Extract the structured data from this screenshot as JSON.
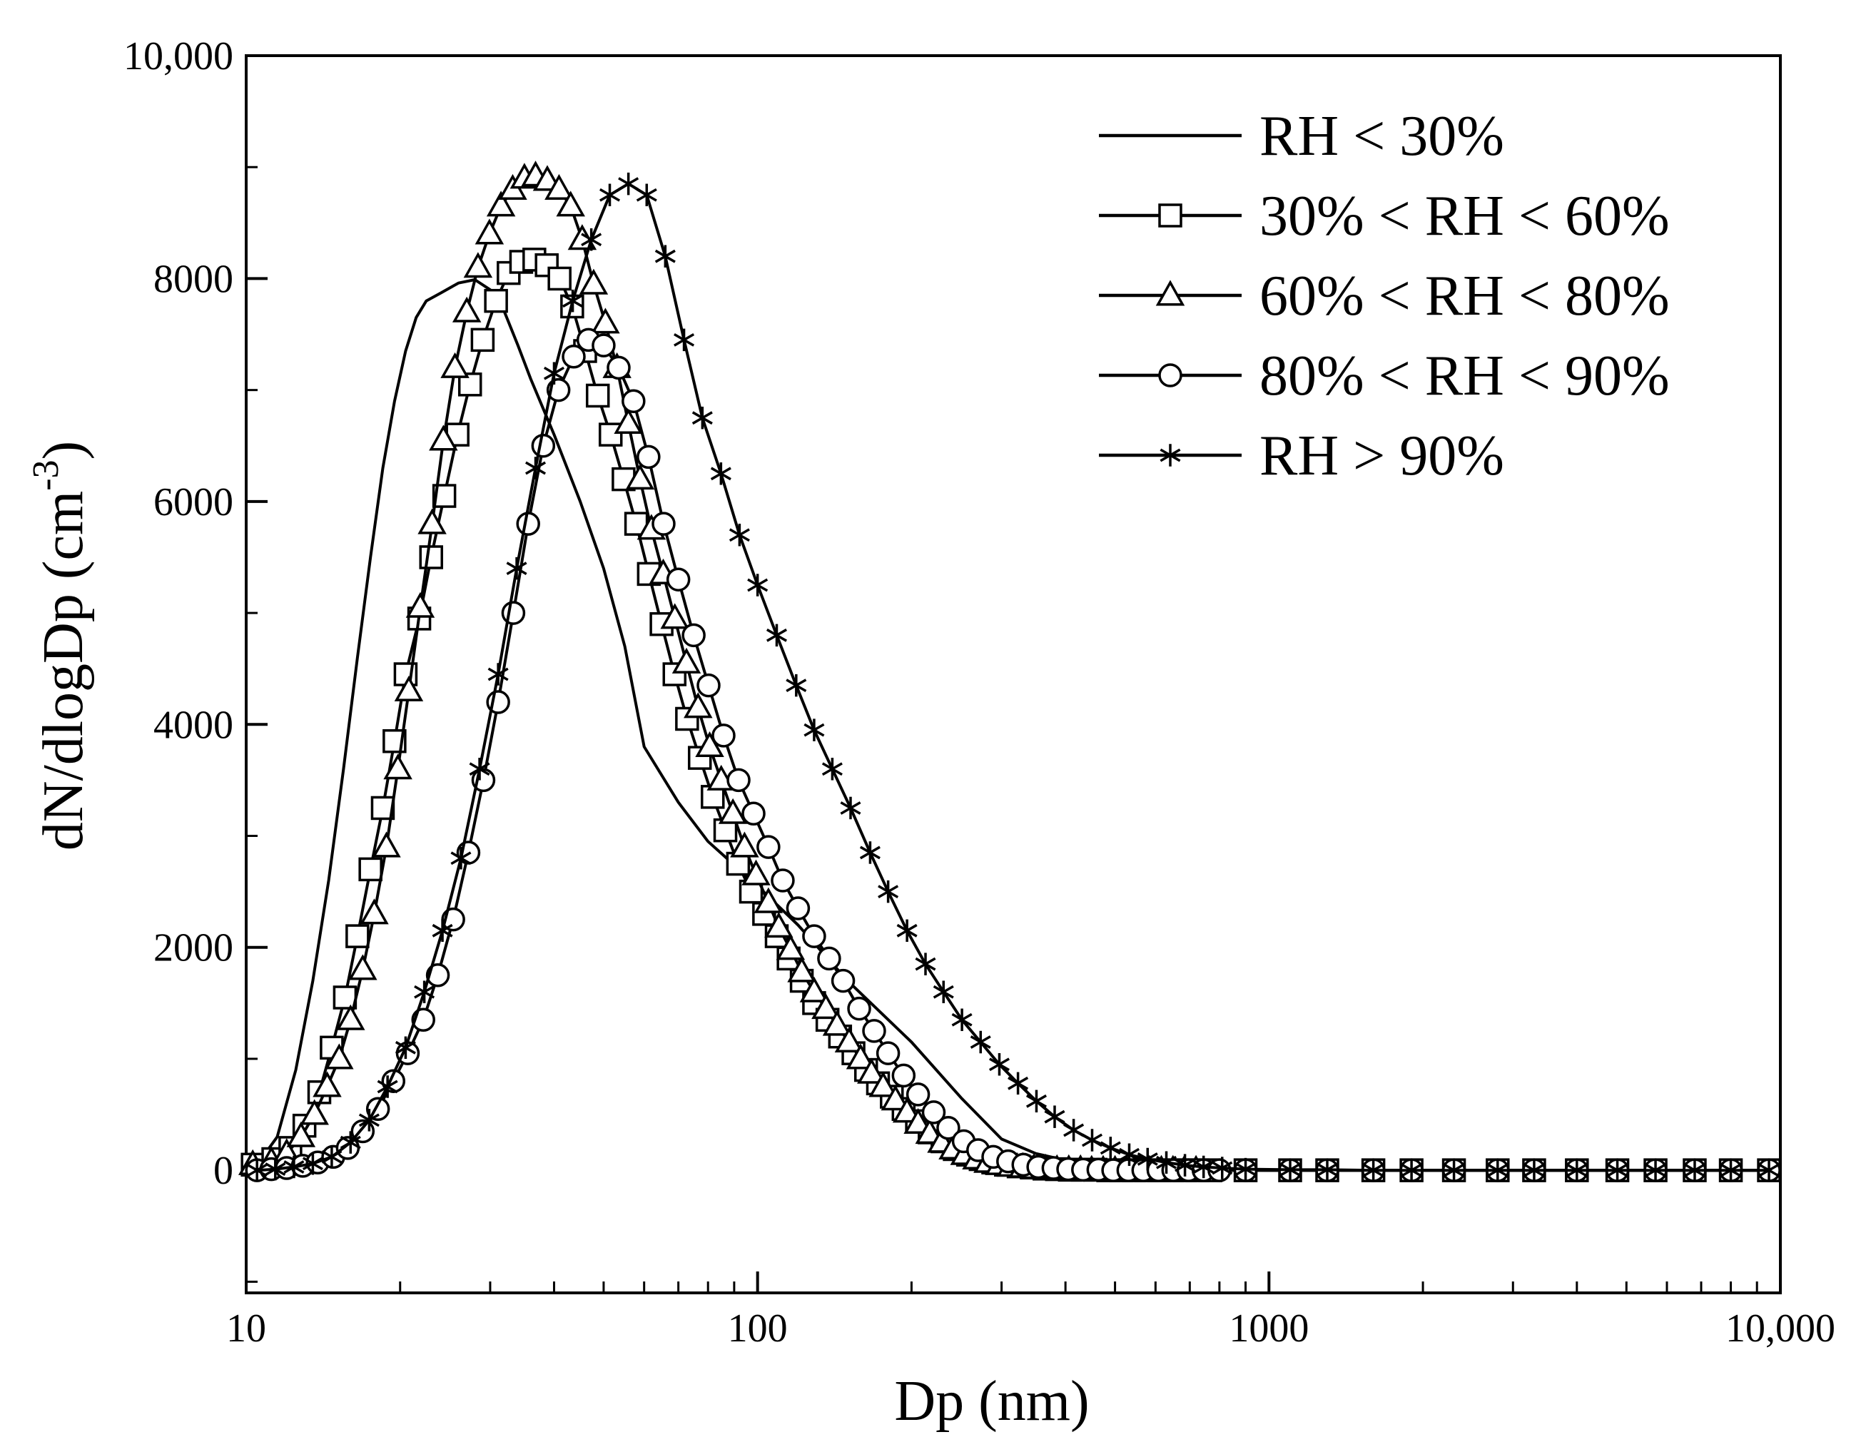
{
  "chart_data": {
    "type": "line",
    "title": "",
    "xlabel": "Dp (nm)",
    "ylabel_main": "dN/dlogDp (cm",
    "ylabel_sup": "-3",
    "ylabel_close": ")",
    "x_scale": "log",
    "xlim": [
      10,
      10000
    ],
    "ylim": [
      -1100,
      10000
    ],
    "x_ticks": [
      {
        "value": 10,
        "label": "10"
      },
      {
        "value": 100,
        "label": "100"
      },
      {
        "value": 1000,
        "label": "1000"
      },
      {
        "value": 10000,
        "label": "10,000"
      }
    ],
    "y_ticks": [
      {
        "value": 0,
        "label": "0"
      },
      {
        "value": 2000,
        "label": "2000"
      },
      {
        "value": 4000,
        "label": "4000"
      },
      {
        "value": 6000,
        "label": "6000"
      },
      {
        "value": 8000,
        "label": "8000"
      },
      {
        "value": 10000,
        "label": "10,000"
      }
    ],
    "grid": false,
    "legend_position": "top-right",
    "series": [
      {
        "name": "RH < 30%",
        "marker": "none",
        "x": [
          10.5,
          11.5,
          12.5,
          13.5,
          14.5,
          15.5,
          16.5,
          17.5,
          18.5,
          19.5,
          20.5,
          21.5,
          22.5,
          24,
          26,
          28,
          30,
          32,
          34,
          36,
          40,
          45,
          50,
          55,
          60,
          70,
          80,
          100,
          120,
          150,
          200,
          250,
          300,
          350,
          400,
          500,
          600,
          800,
          1000,
          2000,
          5000,
          10000
        ],
        "y": [
          50,
          300,
          900,
          1700,
          2600,
          3600,
          4600,
          5500,
          6300,
          6900,
          7350,
          7650,
          7800,
          7870,
          7960,
          7990,
          7900,
          7700,
          7400,
          7100,
          6600,
          6000,
          5400,
          4700,
          3800,
          3300,
          2950,
          2550,
          2200,
          1700,
          1150,
          650,
          280,
          150,
          90,
          40,
          20,
          5,
          0,
          0,
          0,
          0
        ]
      },
      {
        "name": "30% < RH < 60%",
        "marker": "square",
        "x": [
          10.3,
          11.3,
          12.2,
          13.0,
          13.9,
          14.7,
          15.6,
          16.5,
          17.5,
          18.5,
          19.5,
          20.5,
          21.8,
          23,
          24.4,
          25.9,
          27.4,
          29,
          30.8,
          32.6,
          34.5,
          36.6,
          38.7,
          41,
          43.4,
          46,
          48.7,
          51.6,
          54.7,
          57.9,
          61.3,
          64.9,
          68.8,
          72.8,
          77.1,
          81.7,
          86.5,
          91.6,
          97.1,
          103,
          109,
          115,
          122,
          129,
          137,
          145,
          154,
          163,
          172,
          183,
          193,
          205,
          217,
          230,
          243,
          258,
          273,
          289,
          306,
          324,
          344,
          364,
          385,
          408,
          432,
          458,
          485,
          514,
          544,
          576,
          610,
          646,
          685,
          725,
          768,
          900,
          1100,
          1300,
          1600,
          1900,
          2300,
          2800,
          3300,
          4000,
          4800,
          5700,
          6800,
          8000,
          9500
        ],
        "y": [
          50,
          100,
          200,
          400,
          700,
          1100,
          1550,
          2100,
          2700,
          3250,
          3850,
          4450,
          4950,
          5500,
          6050,
          6600,
          7050,
          7450,
          7800,
          8050,
          8150,
          8170,
          8120,
          8000,
          7750,
          7350,
          6950,
          6600,
          6200,
          5800,
          5350,
          4900,
          4450,
          4050,
          3700,
          3350,
          3050,
          2750,
          2500,
          2300,
          2100,
          1900,
          1700,
          1500,
          1350,
          1200,
          1050,
          900,
          780,
          660,
          550,
          440,
          340,
          260,
          190,
          140,
          100,
          70,
          50,
          35,
          25,
          15,
          10,
          5,
          5,
          5,
          0,
          0,
          0,
          0,
          0,
          0,
          0,
          0,
          0,
          0,
          0,
          0,
          0,
          0,
          0,
          0,
          0,
          0,
          0,
          0,
          0,
          0,
          0
        ]
      },
      {
        "name": "60% < RH < 80%",
        "marker": "triangle",
        "x": [
          10.3,
          11.2,
          12.0,
          12.8,
          13.6,
          14.4,
          15.2,
          16.0,
          16.9,
          17.8,
          18.8,
          19.8,
          20.8,
          21.9,
          23.1,
          24.3,
          25.6,
          27,
          28.4,
          29.9,
          31.5,
          33.2,
          35,
          36.8,
          38.8,
          40.9,
          43.1,
          45.4,
          47.8,
          50.4,
          53.1,
          55.9,
          58.9,
          62,
          65.4,
          68.9,
          72.6,
          76.5,
          80.6,
          84.9,
          89.5,
          94.3,
          99.3,
          105,
          110,
          116,
          122,
          129,
          136,
          143,
          151,
          159,
          167,
          176,
          186,
          196,
          206,
          217,
          229,
          241,
          254,
          268,
          282,
          297,
          313,
          330,
          347,
          366,
          385,
          406,
          428,
          450,
          474,
          500,
          527,
          555,
          584,
          616,
          649,
          683,
          720
        ],
        "y": [
          50,
          80,
          150,
          300,
          500,
          750,
          1000,
          1350,
          1800,
          2300,
          2900,
          3600,
          4300,
          5050,
          5800,
          6550,
          7200,
          7700,
          8100,
          8400,
          8650,
          8800,
          8900,
          8920,
          8880,
          8800,
          8650,
          8350,
          7950,
          7600,
          7200,
          6700,
          6200,
          5750,
          5350,
          4950,
          4550,
          4150,
          3800,
          3500,
          3200,
          2900,
          2650,
          2400,
          2180,
          1980,
          1780,
          1600,
          1450,
          1300,
          1150,
          1000,
          870,
          750,
          630,
          520,
          420,
          330,
          250,
          190,
          140,
          100,
          70,
          50,
          35,
          25,
          15,
          10,
          5,
          5,
          5,
          0,
          0,
          0,
          0,
          0,
          0,
          0,
          0,
          0,
          0
        ]
      },
      {
        "name": "80% < RH < 90%",
        "marker": "circle",
        "x": [
          10.5,
          11.2,
          12.0,
          12.9,
          13.8,
          14.8,
          15.8,
          16.9,
          18.1,
          19.4,
          20.7,
          22.2,
          23.7,
          25.4,
          27.2,
          29.1,
          31.1,
          33.3,
          35.6,
          38.1,
          40.8,
          43.7,
          46.7,
          50,
          53.5,
          57.2,
          61.2,
          65.5,
          70,
          75,
          80.2,
          85.8,
          91.8,
          98.2,
          105,
          112,
          120,
          129,
          138,
          147,
          158,
          169,
          180,
          193,
          206,
          221,
          236,
          253,
          270,
          289,
          309,
          331,
          354,
          379,
          405,
          433,
          464,
          496,
          531,
          568,
          608,
          650,
          696,
          745,
          800,
          900,
          1100,
          1300,
          1600,
          1900,
          2300,
          2800,
          3300,
          4000,
          4800,
          5700,
          6800,
          8000,
          9500
        ],
        "y": [
          0,
          10,
          20,
          40,
          70,
          120,
          200,
          350,
          550,
          800,
          1050,
          1350,
          1750,
          2250,
          2850,
          3500,
          4200,
          5000,
          5800,
          6500,
          7000,
          7300,
          7450,
          7400,
          7200,
          6900,
          6400,
          5800,
          5300,
          4800,
          4350,
          3900,
          3500,
          3200,
          2900,
          2600,
          2350,
          2100,
          1900,
          1700,
          1450,
          1250,
          1050,
          850,
          680,
          520,
          380,
          260,
          180,
          120,
          80,
          50,
          30,
          20,
          10,
          5,
          5,
          0,
          0,
          0,
          0,
          0,
          0,
          0,
          0,
          0,
          0,
          0,
          0,
          0,
          0,
          0,
          0,
          0,
          0,
          0,
          0,
          0,
          0
        ]
      },
      {
        "name": "RH > 90%",
        "marker": "star",
        "x": [
          10.5,
          11.4,
          12.4,
          13.5,
          14.7,
          16.0,
          17.4,
          18.9,
          20.5,
          22.3,
          24.2,
          26.3,
          28.6,
          31.1,
          33.8,
          36.8,
          40,
          43.5,
          47.3,
          51.4,
          55.9,
          60.7,
          66,
          71.8,
          78,
          84.8,
          92.2,
          100,
          109,
          119,
          129,
          140,
          152,
          166,
          180,
          196,
          213,
          231,
          251,
          273,
          297,
          323,
          351,
          381,
          415,
          451,
          490,
          533,
          579,
          630,
          685,
          745,
          810,
          900,
          1100,
          1300,
          1600,
          1900,
          2300,
          2800,
          3300,
          4000,
          4800,
          5700,
          6800,
          8000,
          9500
        ],
        "y": [
          0,
          10,
          30,
          60,
          120,
          250,
          450,
          750,
          1100,
          1600,
          2150,
          2800,
          3600,
          4450,
          5400,
          6300,
          7150,
          7800,
          8350,
          8750,
          8850,
          8750,
          8200,
          7450,
          6750,
          6250,
          5700,
          5250,
          4800,
          4350,
          3950,
          3600,
          3250,
          2850,
          2500,
          2150,
          1850,
          1600,
          1350,
          1150,
          950,
          780,
          620,
          480,
          360,
          270,
          200,
          140,
          100,
          70,
          45,
          30,
          20,
          10,
          5,
          5,
          0,
          0,
          0,
          0,
          0,
          0,
          0,
          0,
          0,
          0,
          0
        ]
      }
    ]
  }
}
